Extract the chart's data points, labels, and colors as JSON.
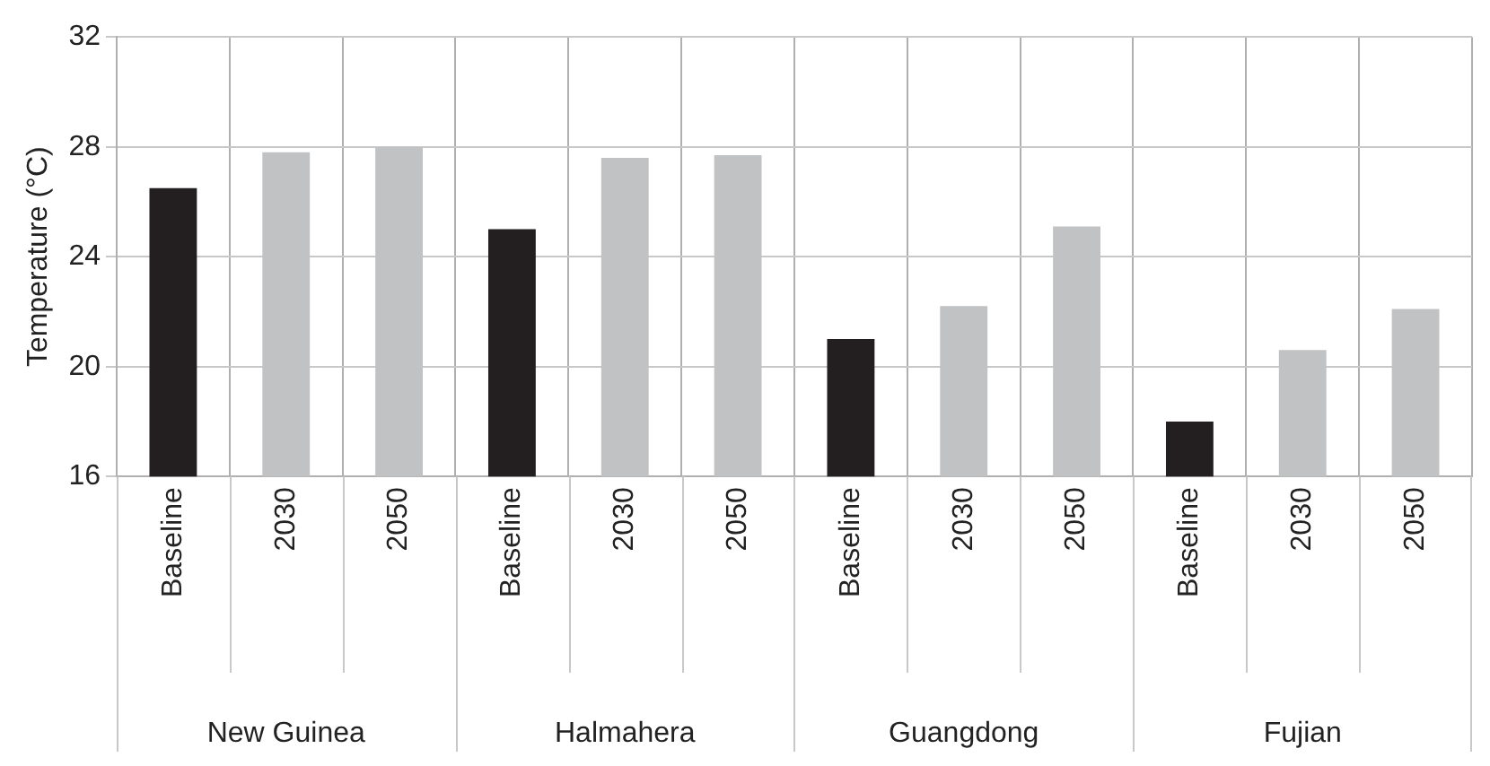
{
  "chart_data": {
    "type": "bar",
    "ylabel": "Temperature (°C)",
    "categories": [
      "Baseline",
      "2030",
      "2050",
      "Baseline",
      "2030",
      "2050",
      "Baseline",
      "2030",
      "2050",
      "Baseline",
      "2030",
      "2050"
    ],
    "values": [
      26.5,
      27.8,
      28.0,
      25.0,
      27.6,
      27.7,
      21.0,
      22.2,
      25.1,
      18.0,
      20.6,
      22.1
    ],
    "colors": [
      "#231f20",
      "#c1c2c4",
      "#c1c2c4",
      "#231f20",
      "#c1c2c4",
      "#c1c2c4",
      "#231f20",
      "#c1c2c4",
      "#c1c2c4",
      "#231f20",
      "#c1c2c4",
      "#c1c2c4"
    ],
    "ylim": [
      16,
      32
    ],
    "yticks": [
      16,
      20,
      24,
      28,
      32
    ],
    "grid": true,
    "annotations": [
      "New Guinea",
      "Halmahera",
      "Guangdong",
      "Fujian"
    ]
  }
}
